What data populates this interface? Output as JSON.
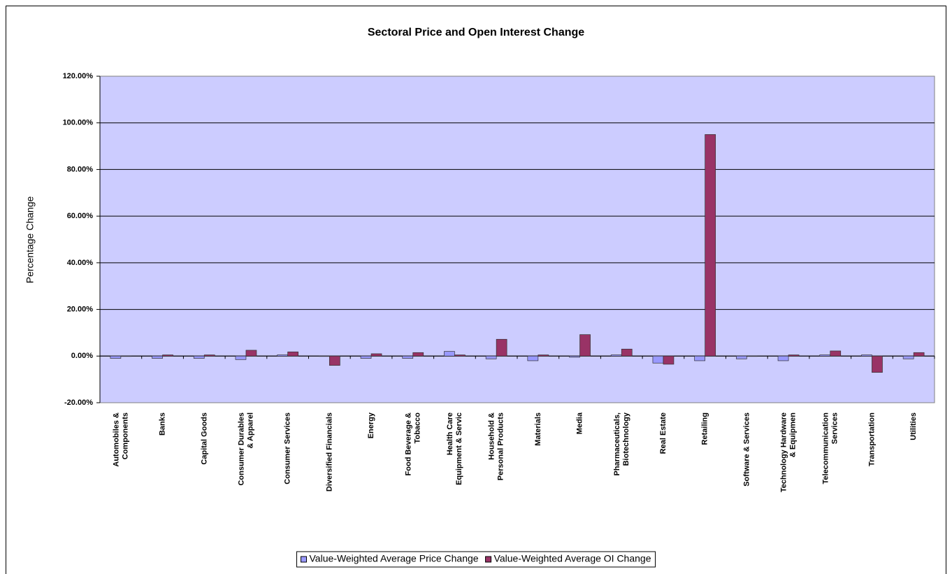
{
  "chart_data": {
    "type": "bar",
    "title": "Sectoral Price and Open Interest Change",
    "ylabel": "Percentage Change",
    "categories": [
      "Automobiles &\nComponents",
      "Banks",
      "Capital Goods",
      "Consumer Durables\n& Apparel",
      "Consumer Services",
      "Diversified Financials",
      "Energy",
      "Food Beverage &\nTobacco",
      "Health Care\nEquipment & Servic",
      "Household &\nPersonal Products",
      "Materials",
      "Media",
      "Pharmaceuticals,\nBiotechnology",
      "Real Estate",
      "Retailing",
      "Software & Services",
      "Technology Hardware\n& Equipmen",
      "Telecommunication\nServices",
      "Transportation",
      "Utilities"
    ],
    "series": [
      {
        "name": "Value-Weighted Average Price Change",
        "color": "#9999ff",
        "values": [
          -1,
          -1,
          -1,
          -1.5,
          0.5,
          0,
          -1,
          -1,
          2,
          -1.2,
          -2,
          -0.5,
          0.5,
          -3,
          -2,
          -1.2,
          -2,
          0.5,
          0.5,
          -1.2
        ]
      },
      {
        "name": "Value-Weighted Average OI Change",
        "color": "#993366",
        "values": [
          0,
          0.5,
          0.5,
          2.5,
          1.8,
          -4,
          1,
          1.5,
          0.5,
          7.2,
          0.5,
          9.2,
          3,
          -3.5,
          95,
          0,
          0.5,
          2.2,
          -7,
          1.5
        ]
      }
    ],
    "ylim": [
      -20,
      120
    ],
    "yticks": [
      {
        "value": -20,
        "label": "-20.00%"
      },
      {
        "value": 0,
        "label": "0.00%"
      },
      {
        "value": 20,
        "label": "20.00%"
      },
      {
        "value": 40,
        "label": "40.00%"
      },
      {
        "value": 60,
        "label": "60.00%"
      },
      {
        "value": 80,
        "label": "80.00%"
      },
      {
        "value": 100,
        "label": "100.00%"
      },
      {
        "value": 120,
        "label": "120.00%"
      }
    ],
    "grid": true,
    "legend": "bottom"
  }
}
